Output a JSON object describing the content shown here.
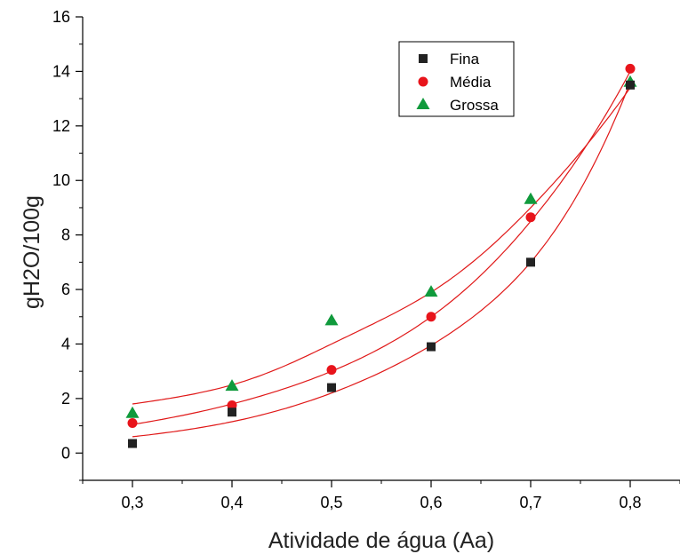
{
  "chart_data": {
    "type": "scatter",
    "xlabel": "Atividade de água (Aa)",
    "ylabel": "gH2O/100g",
    "x": [
      0.3,
      0.4,
      0.5,
      0.6,
      0.7,
      0.8
    ],
    "x_tick_labels": [
      "0,3",
      "0,4",
      "0,5",
      "0,6",
      "0,7",
      "0,8"
    ],
    "y_ticks": [
      0,
      2,
      4,
      6,
      8,
      10,
      12,
      14,
      16
    ],
    "y_tick_labels": [
      "0",
      "2",
      "4",
      "6",
      "8",
      "10",
      "12",
      "14",
      "16"
    ],
    "xlim": [
      0.25,
      0.85
    ],
    "ylim": [
      -1,
      16
    ],
    "grid": false,
    "legend_position": "top-right",
    "series": [
      {
        "name": "Fina",
        "marker": "square",
        "color": "#222222",
        "values": [
          0.35,
          1.5,
          2.4,
          3.9,
          7.0,
          13.5
        ],
        "fit": [
          0.6,
          1.15,
          2.2,
          3.95,
          7.0,
          13.6
        ]
      },
      {
        "name": "Média",
        "marker": "circle",
        "color": "#e8141b",
        "values": [
          1.1,
          1.75,
          3.05,
          5.0,
          8.65,
          14.1
        ],
        "fit": [
          1.05,
          1.8,
          3.0,
          5.0,
          8.5,
          14.0
        ]
      },
      {
        "name": "Grossa",
        "marker": "triangle",
        "color": "#109a3c",
        "values": [
          1.45,
          2.45,
          4.85,
          5.9,
          9.3,
          13.6
        ],
        "fit": [
          1.8,
          2.5,
          4.0,
          5.9,
          9.0,
          13.4
        ]
      }
    ],
    "fit_color": "#e01818"
  }
}
